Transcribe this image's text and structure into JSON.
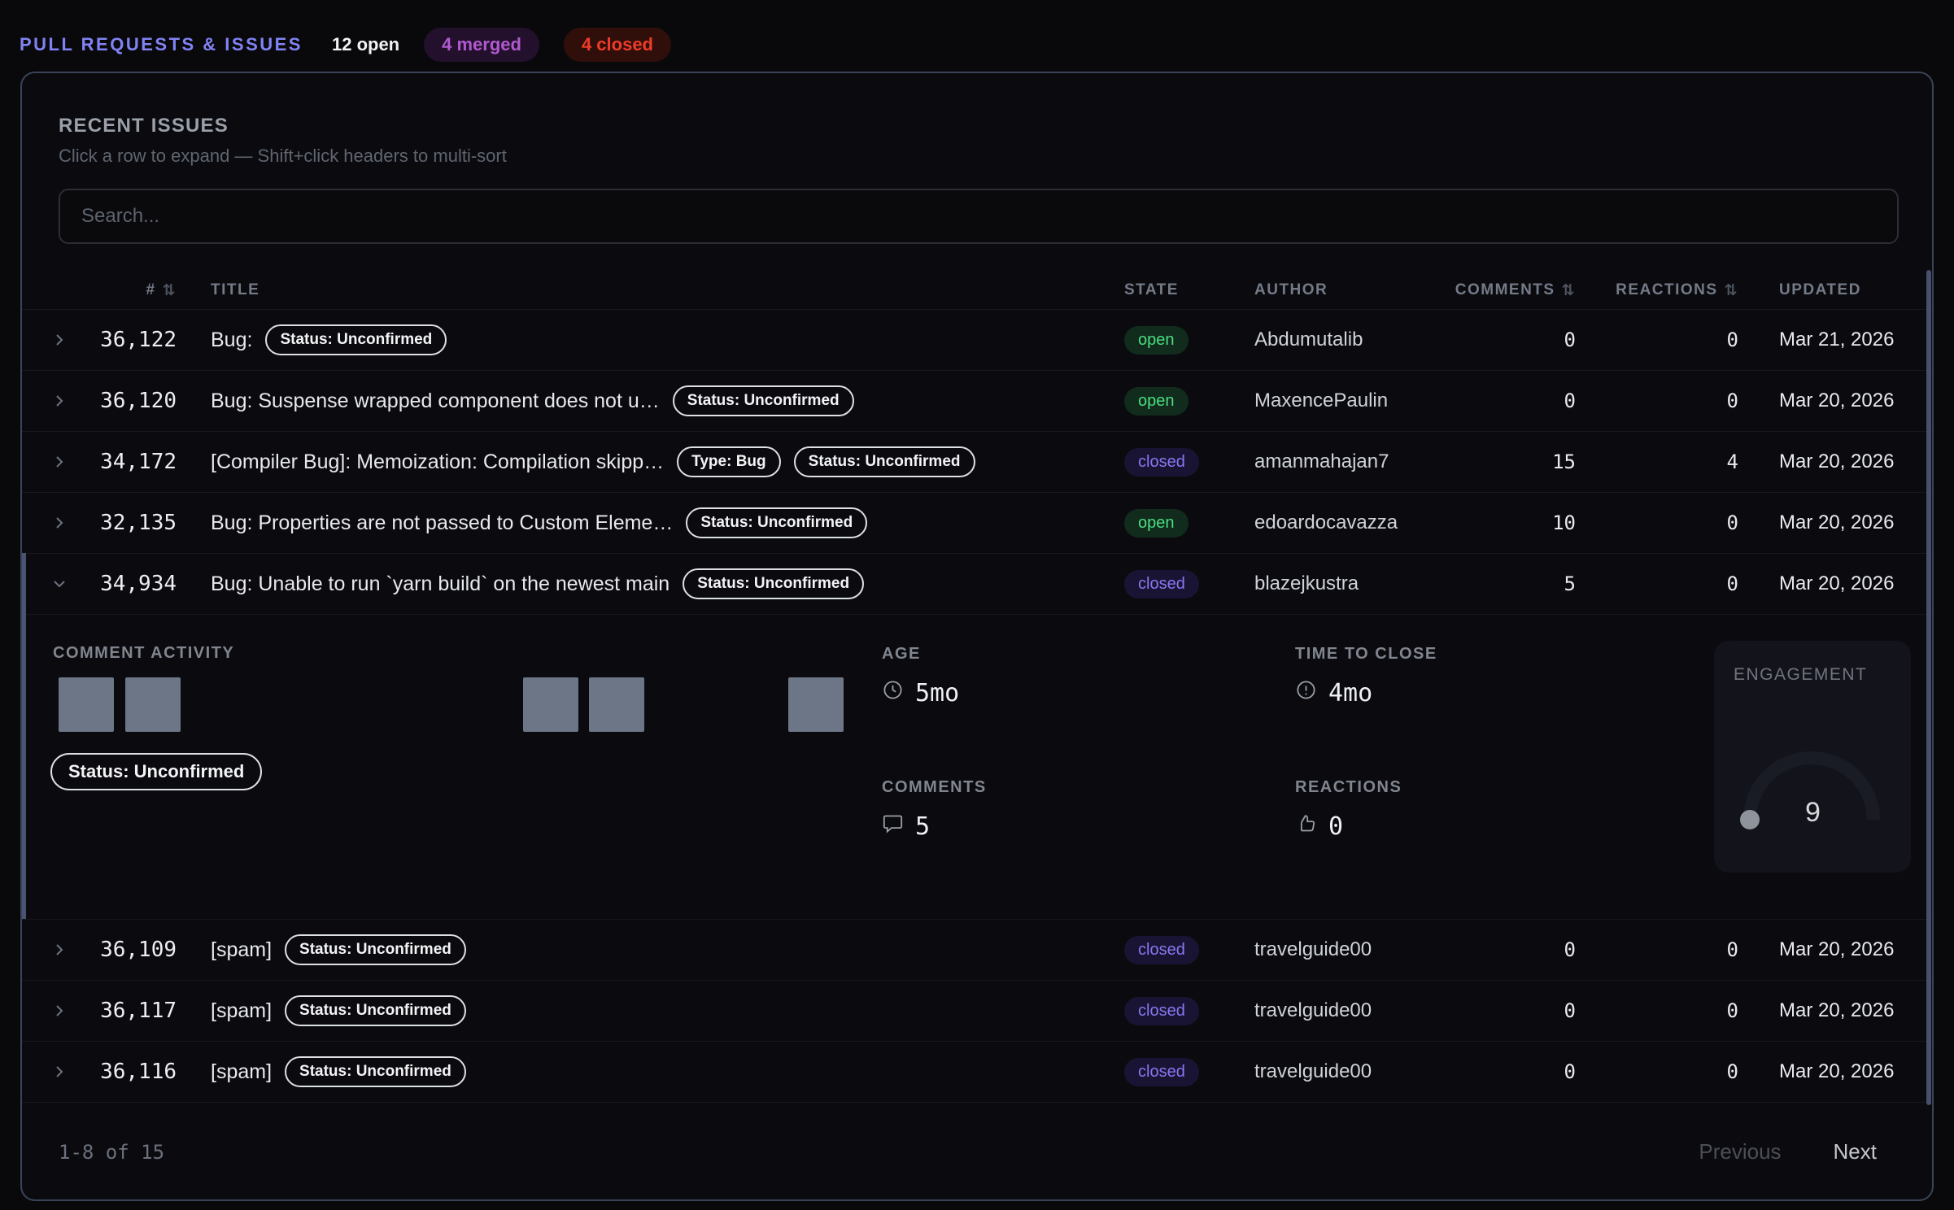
{
  "header": {
    "title": "PULL REQUESTS & ISSUES",
    "open_count": "12 open",
    "merged_badge": "4 merged",
    "closed_badge": "4 closed"
  },
  "panel": {
    "title": "RECENT ISSUES",
    "subtitle": "Click a row to expand — Shift+click headers to multi-sort",
    "search_placeholder": "Search..."
  },
  "table": {
    "columns": {
      "number": "#",
      "title": "TITLE",
      "state": "STATE",
      "author": "AUTHOR",
      "comments": "COMMENTS",
      "reactions": "REACTIONS",
      "updated": "UPDATED"
    },
    "sort_icon": "⇅"
  },
  "rows": [
    {
      "number": "36,122",
      "title": "Bug:",
      "chips": [
        "Status: Unconfirmed"
      ],
      "state": "open",
      "author": "Abdumutalib",
      "comments": "0",
      "reactions": "0",
      "updated": "Mar 21, 2026"
    },
    {
      "number": "36,120",
      "title": "Bug: Suspense wrapped component does not u…",
      "chips": [
        "Status: Unconfirmed"
      ],
      "state": "open",
      "author": "MaxencePaulin",
      "comments": "0",
      "reactions": "0",
      "updated": "Mar 20, 2026"
    },
    {
      "number": "34,172",
      "title": "[Compiler Bug]: Memoization: Compilation skipp…",
      "chips": [
        "Type: Bug",
        "Status: Unconfirmed"
      ],
      "state": "closed",
      "author": "amanmahajan7",
      "comments": "15",
      "reactions": "4",
      "updated": "Mar 20, 2026"
    },
    {
      "number": "32,135",
      "title": "Bug: Properties are not passed to Custom Eleme…",
      "chips": [
        "Status: Unconfirmed"
      ],
      "state": "open",
      "author": "edoardocavazza",
      "comments": "10",
      "reactions": "0",
      "updated": "Mar 20, 2026"
    },
    {
      "number": "34,934",
      "title": "Bug: Unable to run `yarn build` on the newest main",
      "chips": [
        "Status: Unconfirmed"
      ],
      "state": "closed",
      "author": "blazejkustra",
      "comments": "5",
      "reactions": "0",
      "updated": "Mar 20, 2026",
      "expanded": true
    },
    {
      "number": "36,109",
      "title": "[spam]",
      "chips": [
        "Status: Unconfirmed"
      ],
      "state": "closed",
      "author": "travelguide00",
      "comments": "0",
      "reactions": "0",
      "updated": "Mar 20, 2026"
    },
    {
      "number": "36,117",
      "title": "[spam]",
      "chips": [
        "Status: Unconfirmed"
      ],
      "state": "closed",
      "author": "travelguide00",
      "comments": "0",
      "reactions": "0",
      "updated": "Mar 20, 2026"
    },
    {
      "number": "36,116",
      "title": "[spam]",
      "chips": [
        "Status: Unconfirmed"
      ],
      "state": "closed",
      "author": "travelguide00",
      "comments": "0",
      "reactions": "0",
      "updated": "Mar 20, 2026"
    }
  ],
  "expanded": {
    "comment_activity_label": "COMMENT ACTIVITY",
    "activity_slots": [
      1,
      1,
      0,
      0,
      0,
      0,
      0,
      1,
      1,
      0,
      0,
      1
    ],
    "status_chip": "Status: Unconfirmed",
    "stats": {
      "age_label": "AGE",
      "age_value": "5mo",
      "ttc_label": "TIME TO CLOSE",
      "ttc_value": "4mo",
      "comments_label": "COMMENTS",
      "comments_value": "5",
      "reactions_label": "REACTIONS",
      "reactions_value": "0"
    },
    "engagement": {
      "label": "ENGAGEMENT",
      "value": "9"
    }
  },
  "footer": {
    "range": "1-8 of 15",
    "previous": "Previous",
    "next": "Next"
  },
  "colors": {
    "accent_indigo": "#8183f4",
    "state_open": "#4ade80",
    "state_closed": "#8878f2",
    "merged_pill": "#b15ad0",
    "closed_pill": "#f03b28",
    "card_border": "#3a4459",
    "activity_bar": "#6d7686"
  }
}
